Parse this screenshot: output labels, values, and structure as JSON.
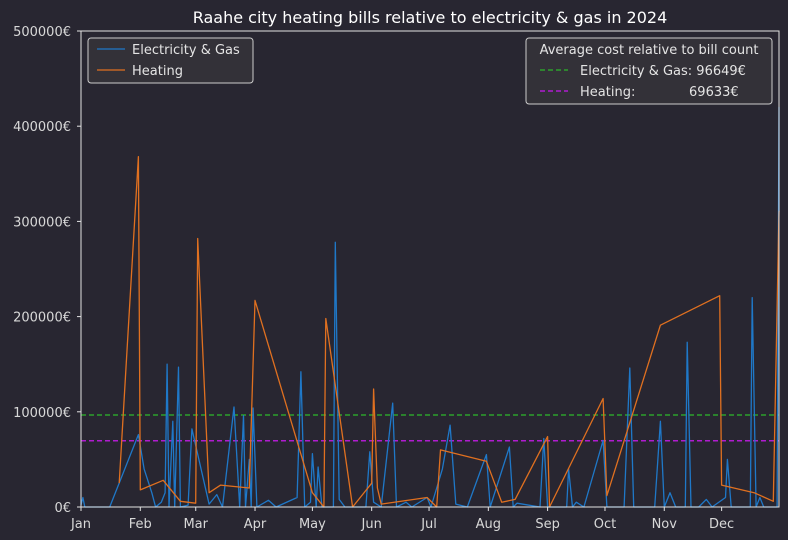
{
  "chart_data": {
    "type": "line",
    "title": "Raahe city heating bills relative to electricity & gas in 2024",
    "xlabel": "",
    "ylabel": "",
    "x_tick_labels": [
      "Jan",
      "Feb",
      "Mar",
      "Apr",
      "May",
      "Jun",
      "Jul",
      "Aug",
      "Sep",
      "Oct",
      "Nov",
      "Dec"
    ],
    "y_tick_labels": [
      "0€",
      "100000€",
      "200000€",
      "300000€",
      "400000€",
      "500000€"
    ],
    "ylim": [
      0,
      500000
    ],
    "grid": false,
    "legend": {
      "placement": "top-left",
      "entries": [
        "Electricity & Gas",
        "Heating"
      ]
    },
    "reference_legend": {
      "placement": "top-right",
      "title": "Average cost relative to bill count",
      "entries": [
        "Electricity & Gas: 96649€",
        "Heating:             69633€"
      ]
    },
    "reference_lines": [
      {
        "name": "Electricity & Gas",
        "value": 96649,
        "color": "#2ca02c",
        "style": "dashed"
      },
      {
        "name": "Heating",
        "value": 69633,
        "color": "#b01cd0",
        "style": "dashed"
      }
    ],
    "series": [
      {
        "name": "Electricity & Gas",
        "color": "#1f78c8",
        "points": [
          [
            "2024-01-01",
            2000
          ],
          [
            "2024-01-02",
            10000
          ],
          [
            "2024-01-03",
            0
          ],
          [
            "2024-01-16",
            0
          ],
          [
            "2024-01-31",
            76000
          ],
          [
            "2024-02-03",
            40000
          ],
          [
            "2024-02-07",
            15000
          ],
          [
            "2024-02-09",
            0
          ],
          [
            "2024-02-12",
            5000
          ],
          [
            "2024-02-14",
            15000
          ],
          [
            "2024-02-15",
            150000
          ],
          [
            "2024-02-16",
            0
          ],
          [
            "2024-02-18",
            90000
          ],
          [
            "2024-02-19",
            0
          ],
          [
            "2024-02-21",
            147000
          ],
          [
            "2024-02-22",
            0
          ],
          [
            "2024-02-26",
            2000
          ],
          [
            "2024-02-28",
            82000
          ],
          [
            "2024-03-08",
            3000
          ],
          [
            "2024-03-12",
            13000
          ],
          [
            "2024-03-15",
            0
          ],
          [
            "2024-03-21",
            105000
          ],
          [
            "2024-03-24",
            0
          ],
          [
            "2024-03-26",
            96000
          ],
          [
            "2024-03-27",
            0
          ],
          [
            "2024-03-29",
            50000
          ],
          [
            "2024-03-30",
            0
          ],
          [
            "2024-03-31",
            104000
          ],
          [
            "2024-04-02",
            0
          ],
          [
            "2024-04-08",
            7000
          ],
          [
            "2024-04-12",
            0
          ],
          [
            "2024-04-23",
            10000
          ],
          [
            "2024-04-25",
            142000
          ],
          [
            "2024-04-27",
            0
          ],
          [
            "2024-04-30",
            5000
          ],
          [
            "2024-05-01",
            56000
          ],
          [
            "2024-05-03",
            0
          ],
          [
            "2024-05-04",
            42000
          ],
          [
            "2024-05-06",
            0
          ],
          [
            "2024-05-12",
            0
          ],
          [
            "2024-05-13",
            278000
          ],
          [
            "2024-05-15",
            8000
          ],
          [
            "2024-05-18",
            0
          ],
          [
            "2024-05-29",
            0
          ],
          [
            "2024-05-31",
            58000
          ],
          [
            "2024-06-02",
            5000
          ],
          [
            "2024-06-06",
            0
          ],
          [
            "2024-06-12",
            109000
          ],
          [
            "2024-06-14",
            0
          ],
          [
            "2024-06-19",
            5000
          ],
          [
            "2024-06-22",
            0
          ],
          [
            "2024-06-30",
            10000
          ],
          [
            "2024-07-02",
            0
          ],
          [
            "2024-07-08",
            40000
          ],
          [
            "2024-07-12",
            86000
          ],
          [
            "2024-07-15",
            3000
          ],
          [
            "2024-07-21",
            0
          ],
          [
            "2024-07-31",
            55000
          ],
          [
            "2024-08-02",
            0
          ],
          [
            "2024-08-12",
            63000
          ],
          [
            "2024-08-14",
            0
          ],
          [
            "2024-08-16",
            4000
          ],
          [
            "2024-08-28",
            0
          ],
          [
            "2024-08-30",
            72000
          ],
          [
            "2024-09-01",
            0
          ],
          [
            "2024-09-11",
            0
          ],
          [
            "2024-09-12",
            40000
          ],
          [
            "2024-09-14",
            0
          ],
          [
            "2024-09-16",
            5000
          ],
          [
            "2024-09-20",
            0
          ],
          [
            "2024-09-30",
            70000
          ],
          [
            "2024-10-02",
            0
          ],
          [
            "2024-10-11",
            0
          ],
          [
            "2024-10-14",
            146000
          ],
          [
            "2024-10-16",
            0
          ],
          [
            "2024-10-21",
            0
          ],
          [
            "2024-10-27",
            0
          ],
          [
            "2024-10-30",
            90000
          ],
          [
            "2024-11-01",
            0
          ],
          [
            "2024-11-04",
            15000
          ],
          [
            "2024-11-07",
            0
          ],
          [
            "2024-11-12",
            0
          ],
          [
            "2024-11-13",
            173000
          ],
          [
            "2024-11-15",
            0
          ],
          [
            "2024-11-19",
            0
          ],
          [
            "2024-11-23",
            8000
          ],
          [
            "2024-11-26",
            0
          ],
          [
            "2024-12-03",
            10000
          ],
          [
            "2024-12-04",
            50000
          ],
          [
            "2024-12-06",
            0
          ],
          [
            "2024-12-16",
            0
          ],
          [
            "2024-12-17",
            220000
          ],
          [
            "2024-12-19",
            0
          ],
          [
            "2024-12-21",
            10000
          ],
          [
            "2024-12-23",
            0
          ],
          [
            "2024-12-30",
            0
          ],
          [
            "2024-12-31",
            420000
          ],
          [
            "2024-12-31",
            310000
          ]
        ]
      },
      {
        "name": "Heating",
        "color": "#e07020",
        "points": [
          [
            "2024-01-21",
            25000
          ],
          [
            "2024-01-31",
            368000
          ],
          [
            "2024-02-01",
            18000
          ],
          [
            "2024-02-13",
            28000
          ],
          [
            "2024-02-22",
            6000
          ],
          [
            "2024-03-01",
            4000
          ],
          [
            "2024-03-02",
            282000
          ],
          [
            "2024-03-08",
            15000
          ],
          [
            "2024-03-14",
            23000
          ],
          [
            "2024-03-29",
            20000
          ],
          [
            "2024-04-01",
            217000
          ],
          [
            "2024-05-01",
            15000
          ],
          [
            "2024-05-07",
            0
          ],
          [
            "2024-05-08",
            198000
          ],
          [
            "2024-05-22",
            0
          ],
          [
            "2024-06-01",
            25000
          ],
          [
            "2024-06-02",
            124000
          ],
          [
            "2024-06-04",
            20000
          ],
          [
            "2024-06-06",
            3000
          ],
          [
            "2024-06-30",
            10000
          ],
          [
            "2024-07-05",
            0
          ],
          [
            "2024-07-07",
            60000
          ],
          [
            "2024-07-31",
            48000
          ],
          [
            "2024-08-08",
            5000
          ],
          [
            "2024-08-15",
            8000
          ],
          [
            "2024-09-01",
            74000
          ],
          [
            "2024-09-02",
            0
          ],
          [
            "2024-09-30",
            114000
          ],
          [
            "2024-10-02",
            12000
          ],
          [
            "2024-10-30",
            191000
          ],
          [
            "2024-11-30",
            222000
          ],
          [
            "2024-12-01",
            23000
          ],
          [
            "2024-12-18",
            15000
          ],
          [
            "2024-12-28",
            6000
          ],
          [
            "2024-12-31",
            311000
          ]
        ]
      }
    ]
  }
}
